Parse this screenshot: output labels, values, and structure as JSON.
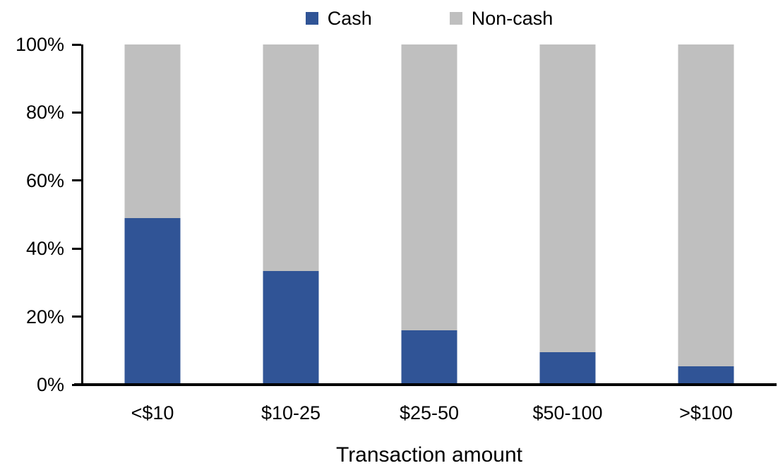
{
  "chart_data": {
    "type": "bar",
    "stacked": true,
    "title": "",
    "xlabel": "Transaction amount",
    "ylabel": "",
    "categories": [
      "<$10",
      "$10-25",
      "$25-50",
      "$50-100",
      ">$100"
    ],
    "series": [
      {
        "name": "Cash",
        "color": "#305496",
        "values": [
          49,
          33.5,
          16,
          9.5,
          5.5
        ]
      },
      {
        "name": "Non-cash",
        "color": "#BFBFBF",
        "values": [
          51,
          66.5,
          84,
          90.5,
          94.5
        ]
      }
    ],
    "ylim": [
      0,
      100
    ],
    "ytick_labels": [
      "0%",
      "20%",
      "40%",
      "60%",
      "80%",
      "100%"
    ],
    "ytick_values": [
      0,
      20,
      40,
      60,
      80,
      100
    ],
    "legend_position": "top-center",
    "grid": false,
    "axis_color": "#000000",
    "background_color": "#FFFFFF"
  }
}
